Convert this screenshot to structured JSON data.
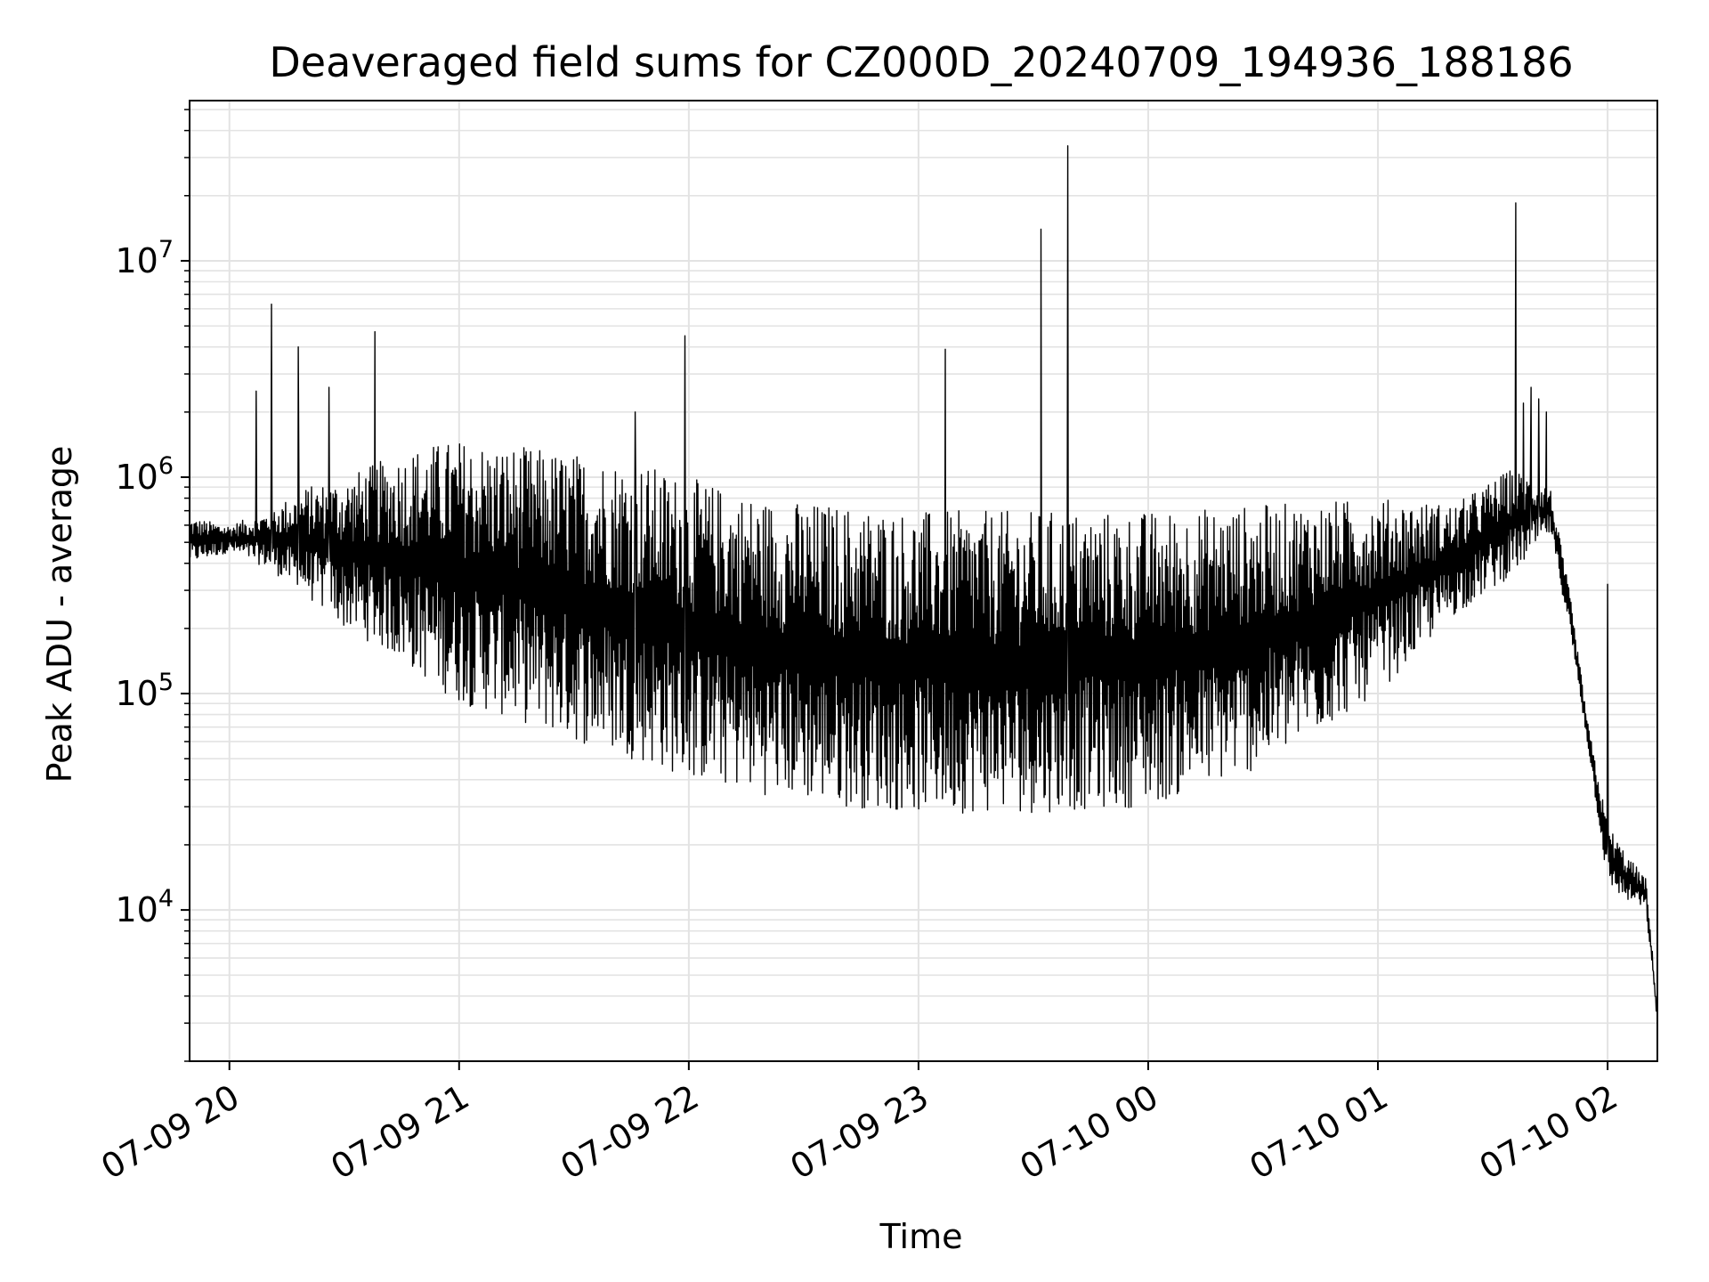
{
  "chart_data": {
    "type": "line",
    "title": "Deaveraged field sums for CZ000D_20240709_194936_188186",
    "xlabel": "Time",
    "ylabel": "Peak ADU - average",
    "x_scale": "time",
    "y_scale": "log",
    "xlim": [
      "2024-07-09 19:49:36",
      "2024-07-10 02:13:00"
    ],
    "ylim": [
      2000,
      55000000
    ],
    "grid": true,
    "legend": "none",
    "line_color": "#000000",
    "x_ticks": [
      {
        "value": "2024-07-09 20:00",
        "label": "07-09 20"
      },
      {
        "value": "2024-07-09 21:00",
        "label": "07-09 21"
      },
      {
        "value": "2024-07-09 22:00",
        "label": "07-09 22"
      },
      {
        "value": "2024-07-09 23:00",
        "label": "07-09 23"
      },
      {
        "value": "2024-07-10 00:00",
        "label": "07-10 00"
      },
      {
        "value": "2024-07-10 01:00",
        "label": "07-10 01"
      },
      {
        "value": "2024-07-10 02:00",
        "label": "07-10 02"
      }
    ],
    "y_ticks": [
      {
        "value": 10000,
        "base": "10",
        "exp": "4"
      },
      {
        "value": 100000,
        "base": "10",
        "exp": "5"
      },
      {
        "value": 1000000,
        "base": "10",
        "exp": "6"
      },
      {
        "value": 10000000,
        "base": "10",
        "exp": "7"
      }
    ],
    "series": [
      {
        "color": "#000000",
        "upper_envelope": [
          [
            "2024-07-09 19:50",
            650000
          ],
          [
            "2024-07-09 20:00",
            600000
          ],
          [
            "2024-07-09 20:10",
            700000
          ],
          [
            "2024-07-09 20:20",
            900000
          ],
          [
            "2024-07-09 20:30",
            1000000
          ],
          [
            "2024-07-09 20:40",
            1200000
          ],
          [
            "2024-07-09 20:50",
            1400000
          ],
          [
            "2024-07-09 21:00",
            1500000
          ],
          [
            "2024-07-09 21:15",
            1400000
          ],
          [
            "2024-07-09 21:30",
            1300000
          ],
          [
            "2024-07-09 21:45",
            1200000
          ],
          [
            "2024-07-09 22:00",
            1000000
          ],
          [
            "2024-07-09 22:20",
            800000
          ],
          [
            "2024-07-09 22:40",
            750000
          ],
          [
            "2024-07-09 23:00",
            700000
          ],
          [
            "2024-07-09 23:30",
            700000
          ],
          [
            "2024-07-10 00:00",
            700000
          ],
          [
            "2024-07-10 00:30",
            750000
          ],
          [
            "2024-07-10 01:00",
            800000
          ],
          [
            "2024-07-10 01:20",
            750000
          ],
          [
            "2024-07-10 01:35",
            1100000
          ],
          [
            "2024-07-10 01:45",
            900000
          ],
          [
            "2024-07-10 01:50",
            300000
          ],
          [
            "2024-07-10 01:55",
            70000
          ],
          [
            "2024-07-10 02:00",
            25000
          ],
          [
            "2024-07-10 02:05",
            18000
          ],
          [
            "2024-07-10 02:10",
            14000
          ],
          [
            "2024-07-10 02:13",
            3500
          ]
        ],
        "lower_envelope": [
          [
            "2024-07-09 19:50",
            400000
          ],
          [
            "2024-07-09 20:00",
            450000
          ],
          [
            "2024-07-09 20:10",
            380000
          ],
          [
            "2024-07-09 20:20",
            280000
          ],
          [
            "2024-07-09 20:30",
            200000
          ],
          [
            "2024-07-09 20:40",
            160000
          ],
          [
            "2024-07-09 20:50",
            120000
          ],
          [
            "2024-07-09 21:00",
            90000
          ],
          [
            "2024-07-09 21:15",
            75000
          ],
          [
            "2024-07-09 21:30",
            60000
          ],
          [
            "2024-07-09 21:45",
            50000
          ],
          [
            "2024-07-09 22:00",
            40000
          ],
          [
            "2024-07-09 22:20",
            34000
          ],
          [
            "2024-07-09 22:40",
            30000
          ],
          [
            "2024-07-09 23:00",
            28000
          ],
          [
            "2024-07-09 23:30",
            28000
          ],
          [
            "2024-07-10 00:00",
            30000
          ],
          [
            "2024-07-10 00:30",
            45000
          ],
          [
            "2024-07-10 01:00",
            100000
          ],
          [
            "2024-07-10 01:20",
            230000
          ],
          [
            "2024-07-10 01:35",
            350000
          ],
          [
            "2024-07-10 01:45",
            550000
          ],
          [
            "2024-07-10 01:50",
            200000
          ],
          [
            "2024-07-10 01:55",
            55000
          ],
          [
            "2024-07-10 02:00",
            13000
          ],
          [
            "2024-07-10 02:05",
            11000
          ],
          [
            "2024-07-10 02:10",
            10000
          ],
          [
            "2024-07-10 02:13",
            3000
          ]
        ],
        "spikes": [
          [
            "2024-07-09 20:07",
            2500000
          ],
          [
            "2024-07-09 20:11",
            6300000
          ],
          [
            "2024-07-09 20:18",
            4000000
          ],
          [
            "2024-07-09 20:26",
            2600000
          ],
          [
            "2024-07-09 20:38",
            4700000
          ],
          [
            "2024-07-09 21:46",
            2000000
          ],
          [
            "2024-07-09 21:59",
            4500000
          ],
          [
            "2024-07-09 23:07",
            3900000
          ],
          [
            "2024-07-09 23:32",
            14000000
          ],
          [
            "2024-07-09 23:39",
            34000000
          ],
          [
            "2024-07-10 01:36",
            18500000
          ],
          [
            "2024-07-10 01:38",
            2200000
          ],
          [
            "2024-07-10 01:40",
            2600000
          ],
          [
            "2024-07-10 01:42",
            2300000
          ],
          [
            "2024-07-10 01:44",
            2000000
          ],
          [
            "2024-07-10 02:00",
            320000
          ]
        ]
      }
    ]
  }
}
